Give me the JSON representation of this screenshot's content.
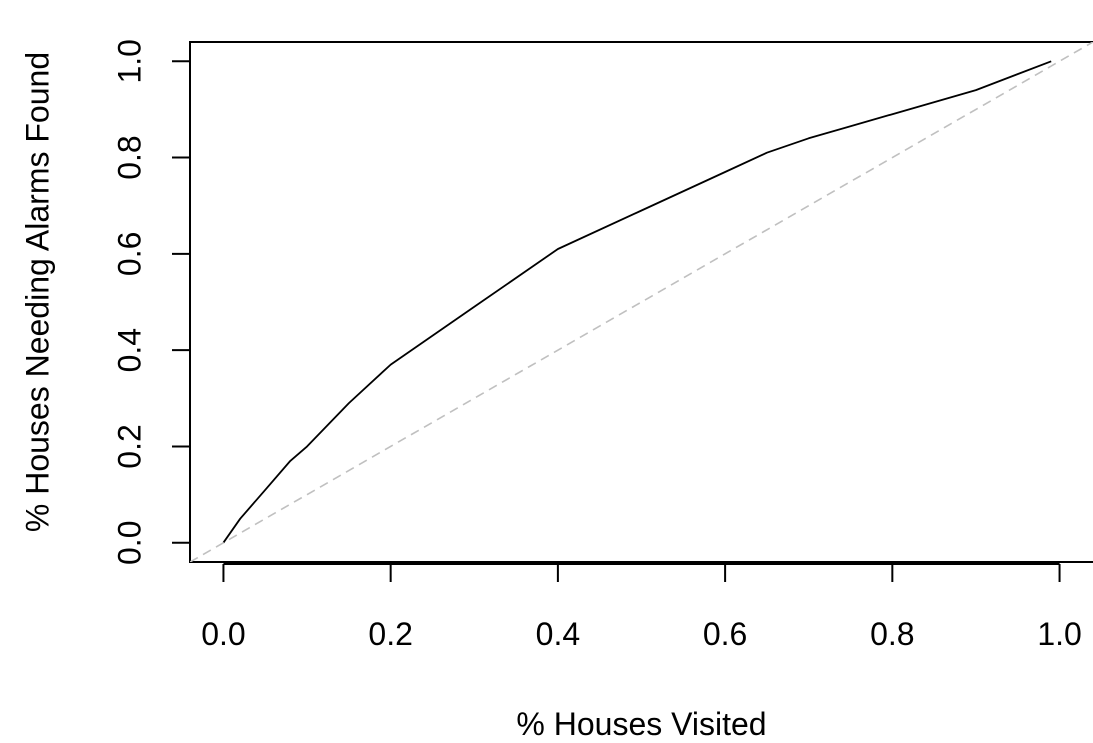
{
  "chart_data": {
    "type": "line",
    "title": "",
    "xlabel": "% Houses Visited",
    "ylabel": "% Houses Needing Alarms Found",
    "xlim": [
      -0.04,
      1.04
    ],
    "ylim": [
      -0.04,
      1.04
    ],
    "xticks": [
      "0.0",
      "0.2",
      "0.4",
      "0.6",
      "0.8",
      "1.0"
    ],
    "yticks": [
      "0.0",
      "0.2",
      "0.4",
      "0.6",
      "0.8",
      "1.0"
    ],
    "grid": false,
    "series": [
      {
        "style": "solid",
        "color": "#000000",
        "x": [
          0.0,
          0.02,
          0.05,
          0.08,
          0.1,
          0.15,
          0.2,
          0.3,
          0.4,
          0.5,
          0.6,
          0.65,
          0.7,
          0.8,
          0.9,
          0.99
        ],
        "y": [
          0.0,
          0.05,
          0.11,
          0.17,
          0.2,
          0.29,
          0.37,
          0.49,
          0.61,
          0.69,
          0.77,
          0.81,
          0.84,
          0.89,
          0.94,
          1.0
        ]
      },
      {
        "style": "dashed",
        "color": "#c0c0c0",
        "x": [
          -0.04,
          1.04
        ],
        "y": [
          -0.04,
          1.04
        ]
      }
    ]
  }
}
